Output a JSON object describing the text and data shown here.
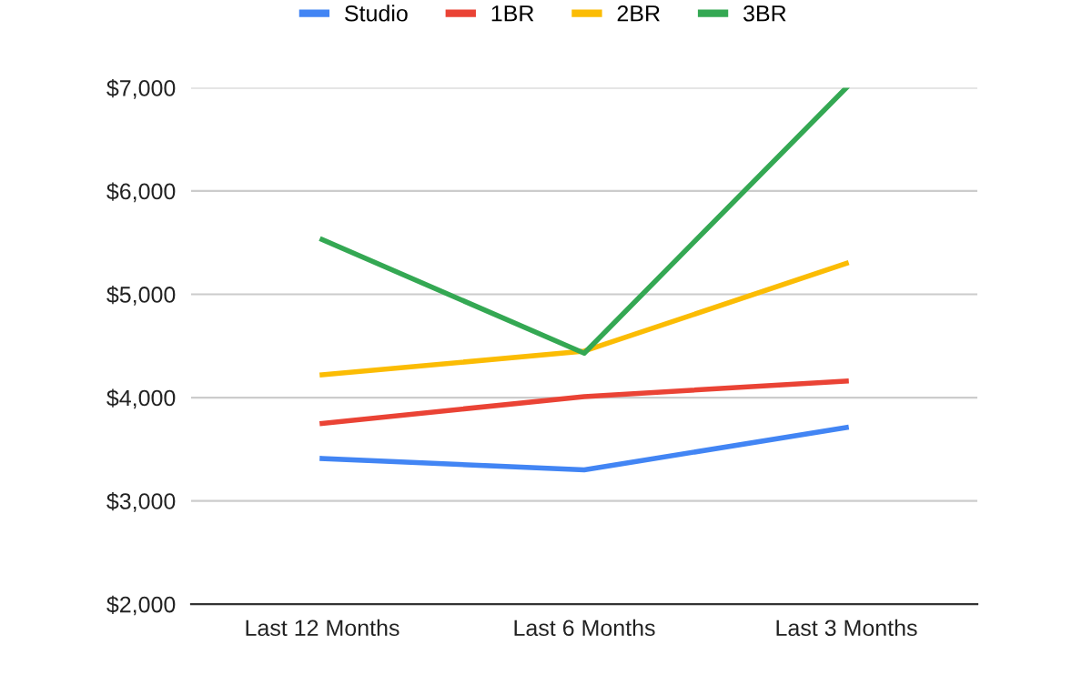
{
  "chart_data": {
    "type": "line",
    "categories": [
      "Last 12 Months",
      "Last 6 Months",
      "Last 3 Months"
    ],
    "series": [
      {
        "name": "Studio",
        "color": "#4285f4",
        "values": [
          3410,
          3300,
          3710
        ]
      },
      {
        "name": "1BR",
        "color": "#ea4335",
        "values": [
          3750,
          4010,
          4160
        ]
      },
      {
        "name": "2BR",
        "color": "#fbbc04",
        "values": [
          4220,
          4450,
          5300
        ]
      },
      {
        "name": "3BR",
        "color": "#34a853",
        "values": [
          5530,
          4430,
          7000
        ]
      }
    ],
    "ylim": [
      2000,
      7000
    ],
    "yticks": [
      {
        "value": 2000,
        "label": "$2,000"
      },
      {
        "value": 3000,
        "label": "$3,000"
      },
      {
        "value": 4000,
        "label": "$4,000"
      },
      {
        "value": 5000,
        "label": "$5,000"
      },
      {
        "value": 6000,
        "label": "$6,000"
      },
      {
        "value": 7000,
        "label": "$7,000"
      }
    ],
    "grid": "y",
    "legend": "top",
    "marker": "none",
    "line_style": "solid"
  }
}
